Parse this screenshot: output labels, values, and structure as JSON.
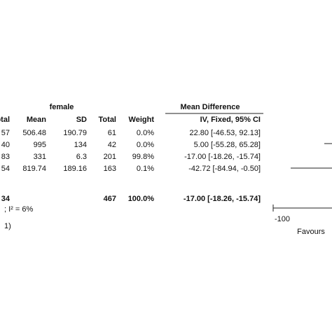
{
  "header": {
    "group": "female",
    "effect": "Mean Difference",
    "columns": [
      "otal",
      "Mean",
      "SD",
      "Total",
      "Weight",
      "IV, Fixed, 95% CI"
    ]
  },
  "table": {
    "rows": [
      [
        "57",
        "506.48",
        "190.79",
        "61",
        "0.0%",
        "22.80 [-46.53, 92.13]"
      ],
      [
        "40",
        "995",
        "134",
        "42",
        "0.0%",
        "5.00 [-55.28, 65.28]"
      ],
      [
        "83",
        "331",
        "6.3",
        "201",
        "99.8%",
        "-17.00 [-18.26, -15.74]"
      ],
      [
        "54",
        "819.74",
        "189.16",
        "163",
        "0.1%",
        "-42.72 [-84.94, -0.50]"
      ]
    ],
    "total": [
      "34",
      "",
      "",
      "467",
      "100.0%",
      "-17.00 [-18.26, -15.74]"
    ]
  },
  "notes": [
    "; I² = 6%",
    "1)"
  ],
  "axis": {
    "tick": "-100",
    "favours": "Favours"
  }
}
